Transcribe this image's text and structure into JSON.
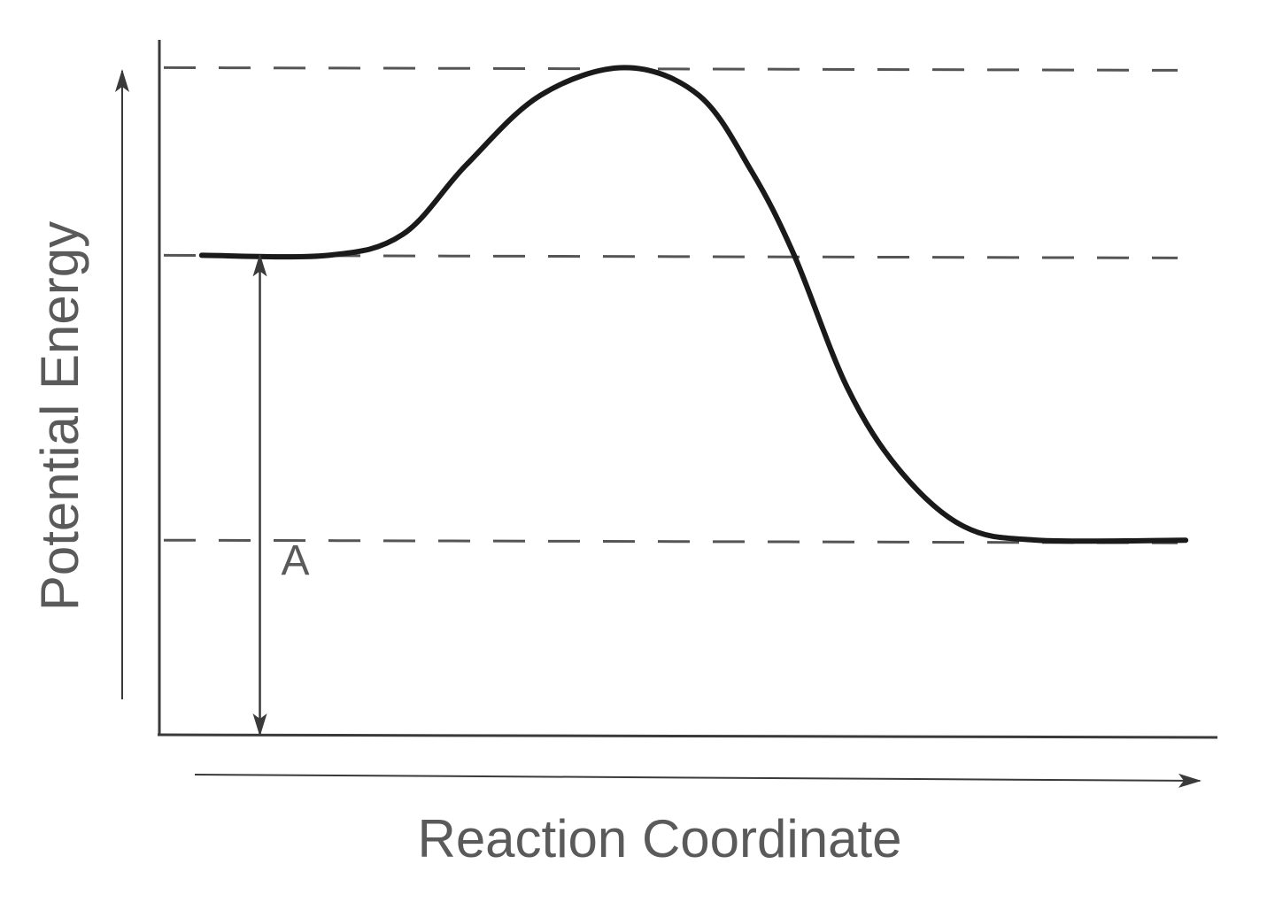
{
  "chart_data": {
    "type": "line",
    "title": "",
    "xlabel": "Reaction Coordinate",
    "ylabel": "Potential Energy",
    "xlim": [
      0,
      10
    ],
    "ylim": [
      0,
      10
    ],
    "ticks": "none",
    "grid": false,
    "reference_levels": [
      9.6,
      6.9,
      2.8
    ],
    "curve": {
      "x": [
        0.4,
        1.6,
        2.3,
        2.9,
        3.6,
        4.4,
        5.1,
        5.6,
        6.0,
        6.5,
        7.0,
        7.6,
        8.3,
        9.7
      ],
      "y": [
        6.9,
        6.9,
        7.2,
        8.2,
        9.2,
        9.6,
        9.2,
        8.1,
        6.9,
        5.0,
        3.8,
        3.0,
        2.8,
        2.8
      ]
    },
    "annotations": [
      {
        "text": "A",
        "type": "double-arrow",
        "x": 0.95,
        "from": 0,
        "to": 6.9
      }
    ],
    "colors": {
      "curve": "#1a1a1a",
      "axis": "#3a3a3a",
      "dashed": "#555555",
      "text": "#5a5a5a"
    }
  }
}
